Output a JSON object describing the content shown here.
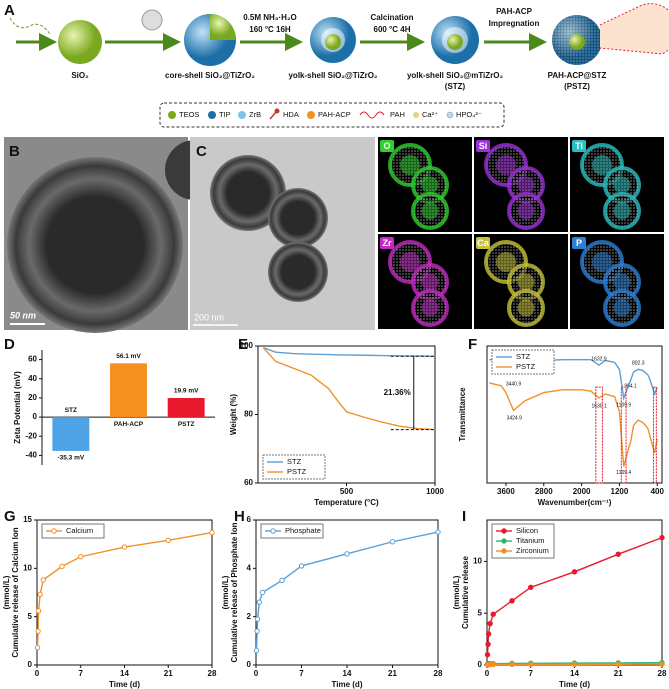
{
  "scheme": {
    "panel": "A",
    "products": [
      "SiO₂",
      "core-shell SiO₂@TiZrO₂",
      "yolk-shell SiO₂@TiZrO₂",
      "yolk-shell SiO₂@mTiZrO₂",
      "(STZ)",
      "PAH-ACP@STZ",
      "(PSTZ)"
    ],
    "conditions": [
      "0.5M NH₃·H₂O",
      "160 °C 16H",
      "Calcination",
      "600 °C 4H",
      "PAH-ACP",
      "Impregnation"
    ],
    "legend": [
      "TEOS",
      "TIP",
      "ZrB",
      "HDA",
      "PAH-ACP",
      "PAH",
      "Ca²⁺",
      "HPO₄²⁻"
    ]
  },
  "microscopy": {
    "panels": [
      "B",
      "C"
    ],
    "scale_bars": [
      "50 nm",
      "200 nm"
    ],
    "maps": [
      "O",
      "Si",
      "Ti",
      "Zr",
      "Ca",
      "P"
    ]
  },
  "chart_data": [
    {
      "type": "bar",
      "panel": "D",
      "ylabel": "Zeta Potential (mV)",
      "categories": [
        "STZ",
        "PAH-ACP",
        "PSTZ"
      ],
      "values": [
        -35.3,
        56.1,
        19.9
      ],
      "value_labels": [
        "-35.3 mV",
        "56.1 mV",
        "19.9 mV"
      ],
      "colors": [
        "#4ea3e6",
        "#f5901e",
        "#e8192c"
      ],
      "ylim": [
        -50,
        70
      ],
      "yticks": [
        -40,
        -20,
        0,
        20,
        40,
        60
      ]
    },
    {
      "type": "line",
      "panel": "E",
      "xlabel": "Temperature (°C)",
      "ylabel": "Weight (%)",
      "x": [
        30,
        100,
        200,
        300,
        400,
        450,
        500,
        600,
        700,
        800,
        900,
        1000
      ],
      "series": [
        {
          "name": "STZ",
          "color": "#5aa0d8",
          "values": [
            99.5,
            98.2,
            97.8,
            97.6,
            97.5,
            97.4,
            97.4,
            97.3,
            97.2,
            97.1,
            97.1,
            97.0
          ]
        },
        {
          "name": "PSTZ",
          "color": "#f0902a",
          "values": [
            99.5,
            95.5,
            93.5,
            91.5,
            87.5,
            84,
            80.8,
            79.2,
            77.8,
            76.6,
            75.9,
            75.6
          ]
        }
      ],
      "annotation": "21.36%",
      "legend": "lower left",
      "xlim": [
        0,
        1000
      ],
      "xticks": [
        500,
        1000
      ],
      "ylim": [
        60,
        100
      ],
      "yticks": [
        60,
        80,
        100
      ]
    },
    {
      "type": "line",
      "panel": "F",
      "xlabel": "Wavenumber(cm⁻¹)",
      "ylabel": "Transmittance",
      "x": [
        3950,
        3700,
        3600,
        3440,
        3200,
        2800,
        2400,
        2000,
        1800,
        1632,
        1500,
        1300,
        1200,
        1109,
        1000,
        964,
        900,
        802,
        700,
        600,
        560,
        457,
        400
      ],
      "series": [
        {
          "name": "STZ",
          "color": "#5aa0d8",
          "values": [
            90,
            90,
            89,
            82,
            86,
            89.5,
            90,
            90,
            90,
            86,
            89.5,
            88,
            83,
            62,
            72,
            75,
            81,
            83,
            82,
            79,
            76,
            65,
            70
          ]
        },
        {
          "name": "PSTZ",
          "color": "#f0902a",
          "values": [
            73,
            71,
            66,
            53,
            60,
            66,
            68,
            68,
            67,
            62,
            65,
            63,
            52,
            12,
            26,
            30,
            42,
            46,
            44,
            40,
            35,
            22,
            32
          ]
        }
      ],
      "annotations": [
        "3440.9",
        "1632.9",
        "802.3",
        "964.1",
        "1109.9",
        "3424.9",
        "1630.1",
        "1109.4"
      ],
      "legend": "upper left",
      "xlim": [
        4000,
        300
      ],
      "xticks": [
        3600,
        2800,
        2000,
        1200,
        400
      ],
      "ylim": [
        0,
        100
      ]
    },
    {
      "type": "line",
      "panel": "G",
      "xlabel": "Time (d)",
      "ylabel": [
        "Cumulative release of Calcium Ion",
        "(mmol/L)"
      ],
      "x": [
        0.08,
        0.17,
        0.25,
        0.5,
        1,
        4,
        7,
        14,
        21,
        28
      ],
      "series": [
        {
          "name": "Calcium",
          "color": "#f0902a",
          "values": [
            1.8,
            3.5,
            5.6,
            7.3,
            8.8,
            10.2,
            11.2,
            12.2,
            12.9,
            13.7
          ]
        }
      ],
      "markers": "open",
      "legend": "upper left",
      "xlim": [
        0,
        28
      ],
      "xticks": [
        0,
        7,
        14,
        21,
        28
      ],
      "ylim": [
        0,
        15
      ],
      "yticks": [
        0,
        5,
        10,
        15
      ]
    },
    {
      "type": "line",
      "panel": "H",
      "xlabel": "Time (d)",
      "ylabel": [
        "Cumulative release of Phosphate Ion",
        "(mmol/L)"
      ],
      "x": [
        0.08,
        0.17,
        0.25,
        0.5,
        1,
        4,
        7,
        14,
        21,
        28
      ],
      "series": [
        {
          "name": "Phosphate",
          "color": "#5aa0d8",
          "values": [
            0.6,
            1.4,
            1.9,
            2.6,
            3.0,
            3.5,
            4.1,
            4.6,
            5.1,
            5.5
          ]
        }
      ],
      "markers": "open",
      "legend": "upper left",
      "xlim": [
        0,
        28
      ],
      "xticks": [
        0,
        7,
        14,
        21,
        28
      ],
      "ylim": [
        0,
        6
      ],
      "yticks": [
        0,
        2,
        4,
        6
      ]
    },
    {
      "type": "line",
      "panel": "I",
      "xlabel": "Time (d)",
      "ylabel": [
        "Cumulative release",
        "(mmol/L)"
      ],
      "x": [
        0.08,
        0.17,
        0.25,
        0.5,
        1,
        4,
        7,
        14,
        21,
        28
      ],
      "series": [
        {
          "name": "Silicon",
          "color": "#e8192c",
          "values": [
            1,
            2,
            3,
            4,
            4.9,
            6.2,
            7.5,
            9,
            10.7,
            12.3
          ]
        },
        {
          "name": "Titanium",
          "color": "#2bb673",
          "values": [
            0.1,
            0.1,
            0.12,
            0.12,
            0.13,
            0.15,
            0.16,
            0.18,
            0.2,
            0.22
          ]
        },
        {
          "name": "Zirconium",
          "color": "#f0902a",
          "values": [
            0.03,
            0.03,
            0.04,
            0.04,
            0.05,
            0.05,
            0.06,
            0.06,
            0.07,
            0.08
          ]
        }
      ],
      "markers": "filled",
      "legend": "upper left",
      "xlim": [
        0,
        28
      ],
      "xticks": [
        0,
        7,
        14,
        21,
        28
      ],
      "ylim": [
        0,
        14
      ],
      "yticks": [
        0,
        5,
        10
      ]
    }
  ]
}
